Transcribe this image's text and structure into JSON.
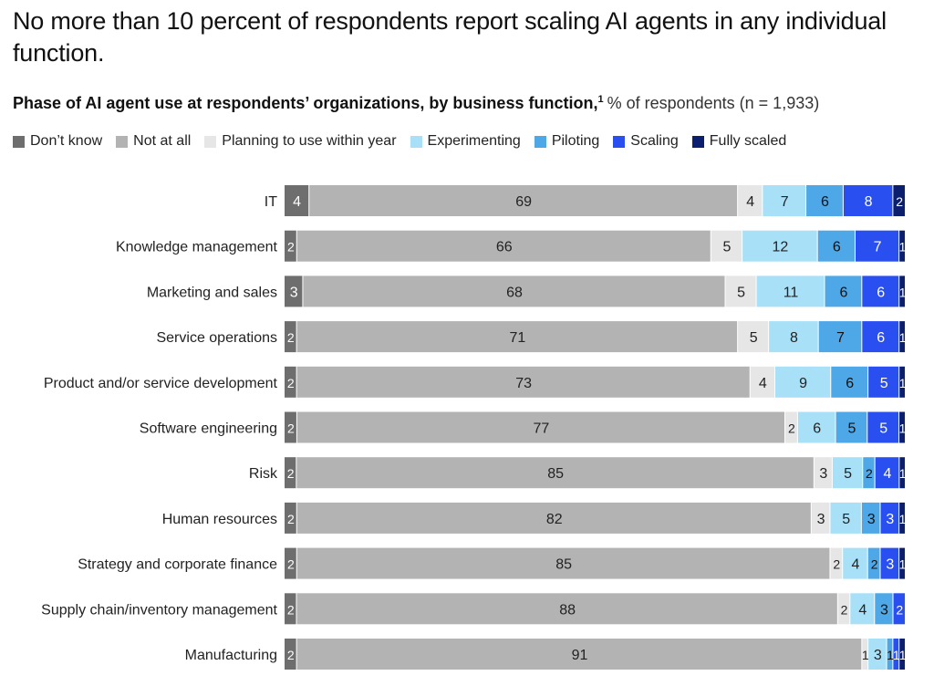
{
  "headline": "No more than 10 percent of respondents report scaling AI agents in any individual function.",
  "subtitle": {
    "bold": "Phase of AI agent use at respondents’ organizations, by business function,",
    "footnote": "1",
    "light": "% of respondents (n = 1,933)"
  },
  "chart_data": {
    "type": "bar",
    "orientation": "horizontal",
    "stacked": true,
    "title": "Phase of AI agent use at respondents’ organizations, by business function",
    "unit": "% of respondents (n = 1,933)",
    "legend_position": "top-left",
    "grid": false,
    "categories": [
      "IT",
      "Knowledge management",
      "Marketing and sales",
      "Service operations",
      "Product and/or service development",
      "Software engineering",
      "Risk",
      "Human resources",
      "Strategy and corporate finance",
      "Supply chain/inventory management",
      "Manufacturing"
    ],
    "series": [
      {
        "name": "Don’t know",
        "color": "#6e6e6e",
        "text_color": "#ffffff",
        "values": [
          4,
          2,
          3,
          2,
          2,
          2,
          2,
          2,
          2,
          2,
          2
        ]
      },
      {
        "name": "Not at all",
        "color": "#b3b3b3",
        "text_color": "#222222",
        "values": [
          69,
          66,
          68,
          71,
          73,
          77,
          85,
          82,
          85,
          88,
          91
        ]
      },
      {
        "name": "Planning to use within year",
        "color": "#e6e6e6",
        "text_color": "#222222",
        "values": [
          4,
          5,
          5,
          5,
          4,
          2,
          3,
          3,
          2,
          2,
          1
        ]
      },
      {
        "name": "Experimenting",
        "color": "#a8e0f7",
        "text_color": "#222222",
        "values": [
          7,
          12,
          11,
          8,
          9,
          6,
          5,
          5,
          4,
          4,
          3
        ]
      },
      {
        "name": "Piloting",
        "color": "#4ea8e8",
        "text_color": "#111111",
        "values": [
          6,
          6,
          6,
          7,
          6,
          5,
          2,
          3,
          2,
          3,
          1
        ]
      },
      {
        "name": "Scaling",
        "color": "#2a4ff0",
        "text_color": "#ffffff",
        "values": [
          8,
          7,
          6,
          6,
          5,
          5,
          4,
          3,
          3,
          2,
          1
        ]
      },
      {
        "name": "Fully scaled",
        "color": "#0c1f6e",
        "text_color": "#ffffff",
        "values": [
          2,
          1,
          1,
          1,
          1,
          1,
          1,
          1,
          1,
          null,
          1
        ]
      }
    ],
    "xlim": [
      0,
      100
    ]
  }
}
